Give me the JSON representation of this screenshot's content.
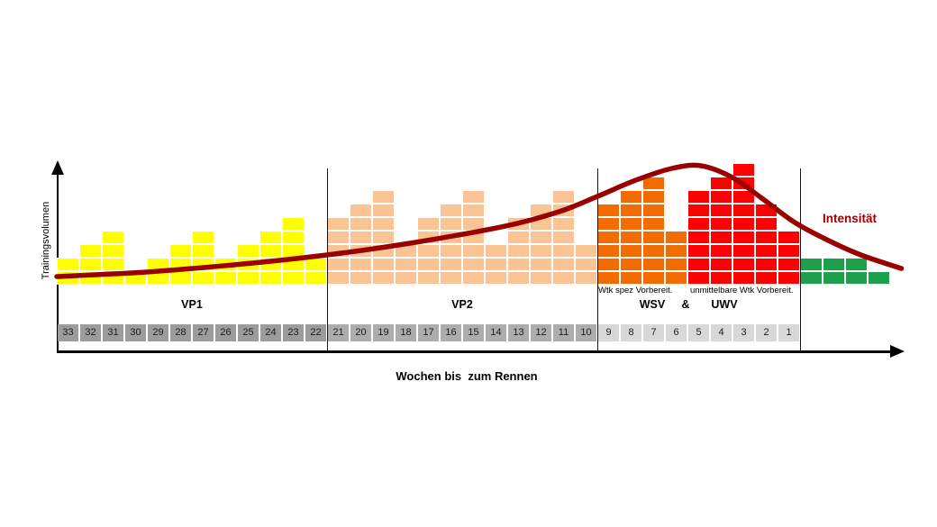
{
  "chart_data": {
    "type": "bar",
    "title": "",
    "xlabel": "Wochen bis  zum Rennen",
    "ylabel": "Trainingsvolumen",
    "amp_label": "&",
    "ylim_blocks": [
      0,
      9
    ],
    "grid": "white block grid inside bars",
    "legend_position": "none (curve labeled inline right side)",
    "phases": [
      {
        "name": "VP1",
        "label": "VP1",
        "color": "#FFFF00",
        "number_bg": "#9C9C9C",
        "weeks": [
          33,
          32,
          31,
          30,
          29,
          28,
          27,
          26,
          25,
          24,
          23,
          22
        ],
        "values": [
          2,
          3,
          4,
          1,
          2,
          3,
          4,
          2,
          3,
          4,
          5,
          2
        ],
        "separator_after": true
      },
      {
        "name": "VP2",
        "label": "VP2",
        "color": "#FAC494",
        "number_bg": "#ADADAD",
        "weeks": [
          21,
          20,
          19,
          18,
          17,
          16,
          15,
          14,
          13,
          12,
          11,
          10
        ],
        "values": [
          5,
          6,
          7,
          3,
          5,
          6,
          7,
          3,
          5,
          6,
          7,
          3
        ],
        "separator_after": true
      },
      {
        "name": "WSV",
        "label": "WSV",
        "sub_label": "Wtk spez Vorbereit.",
        "color": "#F26C02",
        "number_bg": "#D8D8D8",
        "weeks": [
          9,
          8,
          7,
          6
        ],
        "values": [
          6,
          7,
          8,
          4
        ],
        "separator_after": false
      },
      {
        "name": "UWV",
        "label": "UWV",
        "sub_label": "unmittelbare Wtk Vorbereit.",
        "color": "#FF0000",
        "number_bg": "#D8D8D8",
        "weeks": [
          5,
          4,
          3,
          2,
          1
        ],
        "values": [
          7,
          8,
          9,
          6,
          4
        ],
        "separator_after": true
      },
      {
        "name": "",
        "label": "",
        "color": "#1FA04C",
        "number_bg": "",
        "weeks": [],
        "values": [
          2,
          2,
          2,
          1
        ],
        "separator_after": false
      }
    ],
    "curve": {
      "name": "Intensität",
      "color": "#9B0000",
      "points_week_units_x_blocks_y": [
        [
          0,
          0.6
        ],
        [
          3.9,
          0.93
        ],
        [
          7.9,
          1.47
        ],
        [
          12,
          2.2
        ],
        [
          15.9,
          3.13
        ],
        [
          19.9,
          4.33
        ],
        [
          22.3,
          5.4
        ],
        [
          24,
          6.53
        ],
        [
          25.7,
          7.73
        ],
        [
          27.3,
          8.6
        ],
        [
          28.6,
          8.8
        ],
        [
          30,
          7.93
        ],
        [
          31.3,
          6.4
        ],
        [
          32.7,
          4.67
        ],
        [
          34.1,
          3.4
        ],
        [
          35.7,
          2.2
        ],
        [
          37.5,
          1.2
        ]
      ]
    }
  }
}
